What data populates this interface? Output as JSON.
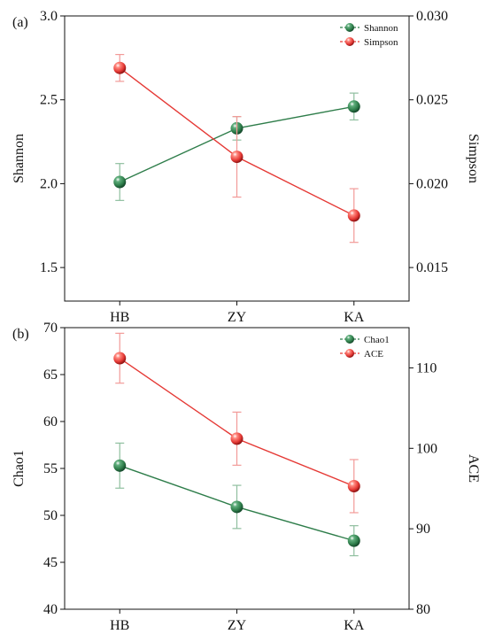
{
  "colors": {
    "green": "#2e7d4a",
    "red": "#e53935",
    "green_err": "#8fbf9f",
    "red_err": "#f29a98",
    "axis": "#111111"
  },
  "chart_data": [
    {
      "type": "line",
      "panel_label": "(a)",
      "categories": [
        "HB",
        "ZY",
        "KA"
      ],
      "left_axis": {
        "label": "Shannon",
        "ylim": [
          1.3,
          3.0
        ],
        "ticks": [
          1.5,
          2.0,
          2.5,
          3.0
        ],
        "tick_labels": [
          "1.5",
          "2.0",
          "2.5",
          "3.0"
        ]
      },
      "right_axis": {
        "label": "Simpson",
        "ylim": [
          0.013,
          0.03
        ],
        "ticks": [
          0.015,
          0.02,
          0.025,
          0.03
        ],
        "tick_labels": [
          "0.015",
          "0.020",
          "0.025",
          "0.030"
        ]
      },
      "series": [
        {
          "name": "Shannon",
          "axis": "left",
          "color": "green",
          "values": [
            2.01,
            2.33,
            2.46
          ],
          "errors": [
            0.11,
            0.07,
            0.08
          ]
        },
        {
          "name": "Simpson",
          "axis": "right",
          "color": "red",
          "values": [
            0.0269,
            0.0216,
            0.0181
          ],
          "errors": [
            0.0008,
            0.0024,
            0.0016
          ]
        }
      ],
      "legend": "top-right"
    },
    {
      "type": "line",
      "panel_label": "(b)",
      "categories": [
        "HB",
        "ZY",
        "KA"
      ],
      "left_axis": {
        "label": "Chao1",
        "ylim": [
          40,
          70
        ],
        "ticks": [
          40,
          45,
          50,
          55,
          60,
          65,
          70
        ],
        "tick_labels": [
          "40",
          "45",
          "50",
          "55",
          "60",
          "65",
          "70"
        ]
      },
      "right_axis": {
        "label": "ACE",
        "ylim": [
          80,
          115
        ],
        "ticks": [
          80,
          90,
          100,
          110
        ],
        "tick_labels": [
          "80",
          "90",
          "100",
          "110"
        ]
      },
      "series": [
        {
          "name": "Chao1",
          "axis": "left",
          "color": "green",
          "values": [
            55.3,
            50.9,
            47.3
          ],
          "errors": [
            2.4,
            2.3,
            1.6
          ]
        },
        {
          "name": "ACE",
          "axis": "right",
          "color": "red",
          "values": [
            111.2,
            101.2,
            95.3
          ],
          "errors": [
            3.1,
            3.3,
            3.3
          ]
        }
      ],
      "legend": "top-right"
    }
  ]
}
